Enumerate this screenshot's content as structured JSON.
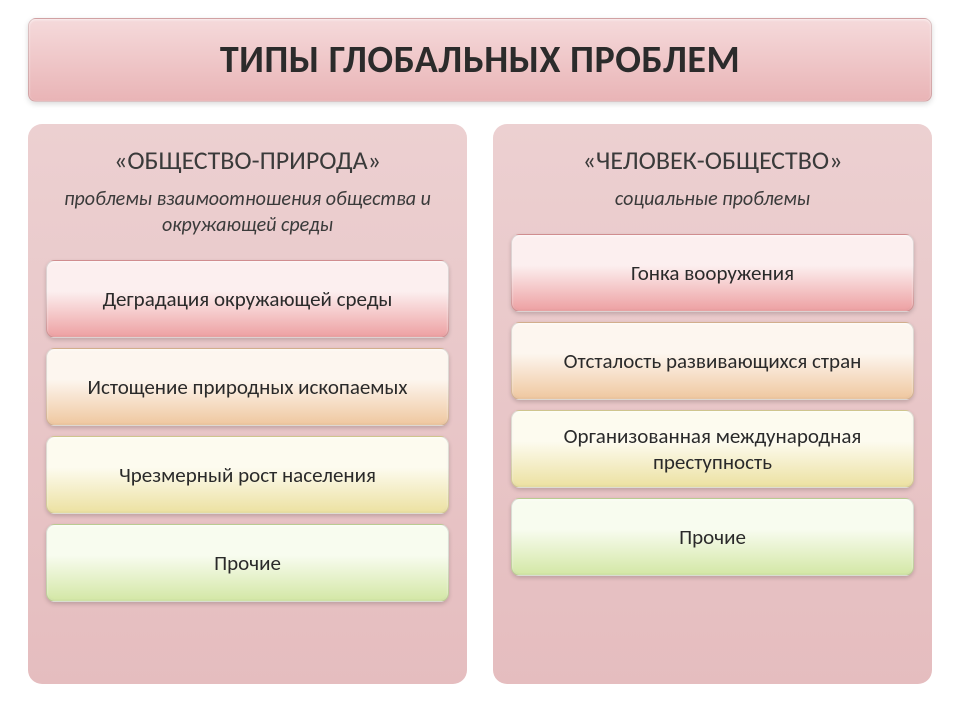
{
  "title": {
    "text": "ТИПЫ ГЛОБАЛЬНЫХ ПРОБЛЕМ",
    "fontsize": 38,
    "fontweight": 700,
    "text_color": "#2b2b2b",
    "bg_gradient_top": "#f5dadb",
    "bg_gradient_bottom": "#e9b4b6",
    "border_radius": 8
  },
  "layout": {
    "page_bg": "#ffffff",
    "column_gap": 26,
    "panel_radius": 14,
    "item_radius": 9,
    "item_height": 78,
    "item_fontsize": 21,
    "panel_title_fontsize": 26,
    "panel_sub_fontsize": 20
  },
  "panels": [
    {
      "key": "society-nature",
      "title": "«ОБЩЕСТВО-ПРИРОДА»",
      "subtitle": "проблемы взаимоотношения общества и окружающей среды",
      "bg_gradient_top": "#ecd0d1",
      "bg_gradient_bottom": "#e5bdbf",
      "items": [
        {
          "label": "Деградация окружающей среды",
          "grad_top": "#fcefef",
          "grad_bottom": "#eda0a2"
        },
        {
          "label": "Истощение природных ископаемых",
          "grad_top": "#fdf6ef",
          "grad_bottom": "#efc79f"
        },
        {
          "label": "Чрезмерный рост населения",
          "grad_top": "#fdfbef",
          "grad_bottom": "#ece1a1"
        },
        {
          "label": "Прочие",
          "grad_top": "#f8fcef",
          "grad_bottom": "#d3e7a5"
        }
      ]
    },
    {
      "key": "person-society",
      "title": "«ЧЕЛОВЕК-ОБЩЕСТВО»",
      "subtitle": "социальные проблемы",
      "bg_gradient_top": "#ecd0d1",
      "bg_gradient_bottom": "#e5bdbf",
      "items": [
        {
          "label": "Гонка вооружения",
          "grad_top": "#fcefef",
          "grad_bottom": "#eda0a2"
        },
        {
          "label": "Отсталость развивающихся стран",
          "grad_top": "#fdf6ef",
          "grad_bottom": "#efc79f"
        },
        {
          "label": "Организованная международная преступность",
          "grad_top": "#fdfbef",
          "grad_bottom": "#ece1a1"
        },
        {
          "label": "Прочие",
          "grad_top": "#f8fcef",
          "grad_bottom": "#d3e7a5"
        }
      ]
    }
  ]
}
